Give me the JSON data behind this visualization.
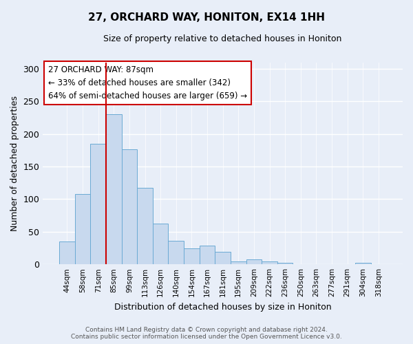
{
  "title": "27, ORCHARD WAY, HONITON, EX14 1HH",
  "subtitle": "Size of property relative to detached houses in Honiton",
  "xlabel": "Distribution of detached houses by size in Honiton",
  "ylabel": "Number of detached properties",
  "bar_labels": [
    "44sqm",
    "58sqm",
    "71sqm",
    "85sqm",
    "99sqm",
    "113sqm",
    "126sqm",
    "140sqm",
    "154sqm",
    "167sqm",
    "181sqm",
    "195sqm",
    "209sqm",
    "222sqm",
    "236sqm",
    "250sqm",
    "263sqm",
    "277sqm",
    "291sqm",
    "304sqm",
    "318sqm"
  ],
  "bar_values": [
    35,
    108,
    185,
    230,
    176,
    117,
    62,
    36,
    25,
    29,
    19,
    4,
    8,
    4,
    2,
    0,
    0,
    0,
    0,
    2,
    0
  ],
  "bar_color": "#c8d9ee",
  "bar_edge_color": "#6aaad4",
  "vline_color": "#cc0000",
  "ylim": [
    0,
    310
  ],
  "yticks": [
    0,
    50,
    100,
    150,
    200,
    250,
    300
  ],
  "annotation_title": "27 ORCHARD WAY: 87sqm",
  "annotation_line1": "← 33% of detached houses are smaller (342)",
  "annotation_line2": "64% of semi-detached houses are larger (659) →",
  "footer1": "Contains HM Land Registry data © Crown copyright and database right 2024.",
  "footer2": "Contains public sector information licensed under the Open Government Licence v3.0.",
  "background_color": "#e8eef8",
  "plot_background": "#e8eef8",
  "grid_color": "#ffffff",
  "vline_bar_index": 3
}
